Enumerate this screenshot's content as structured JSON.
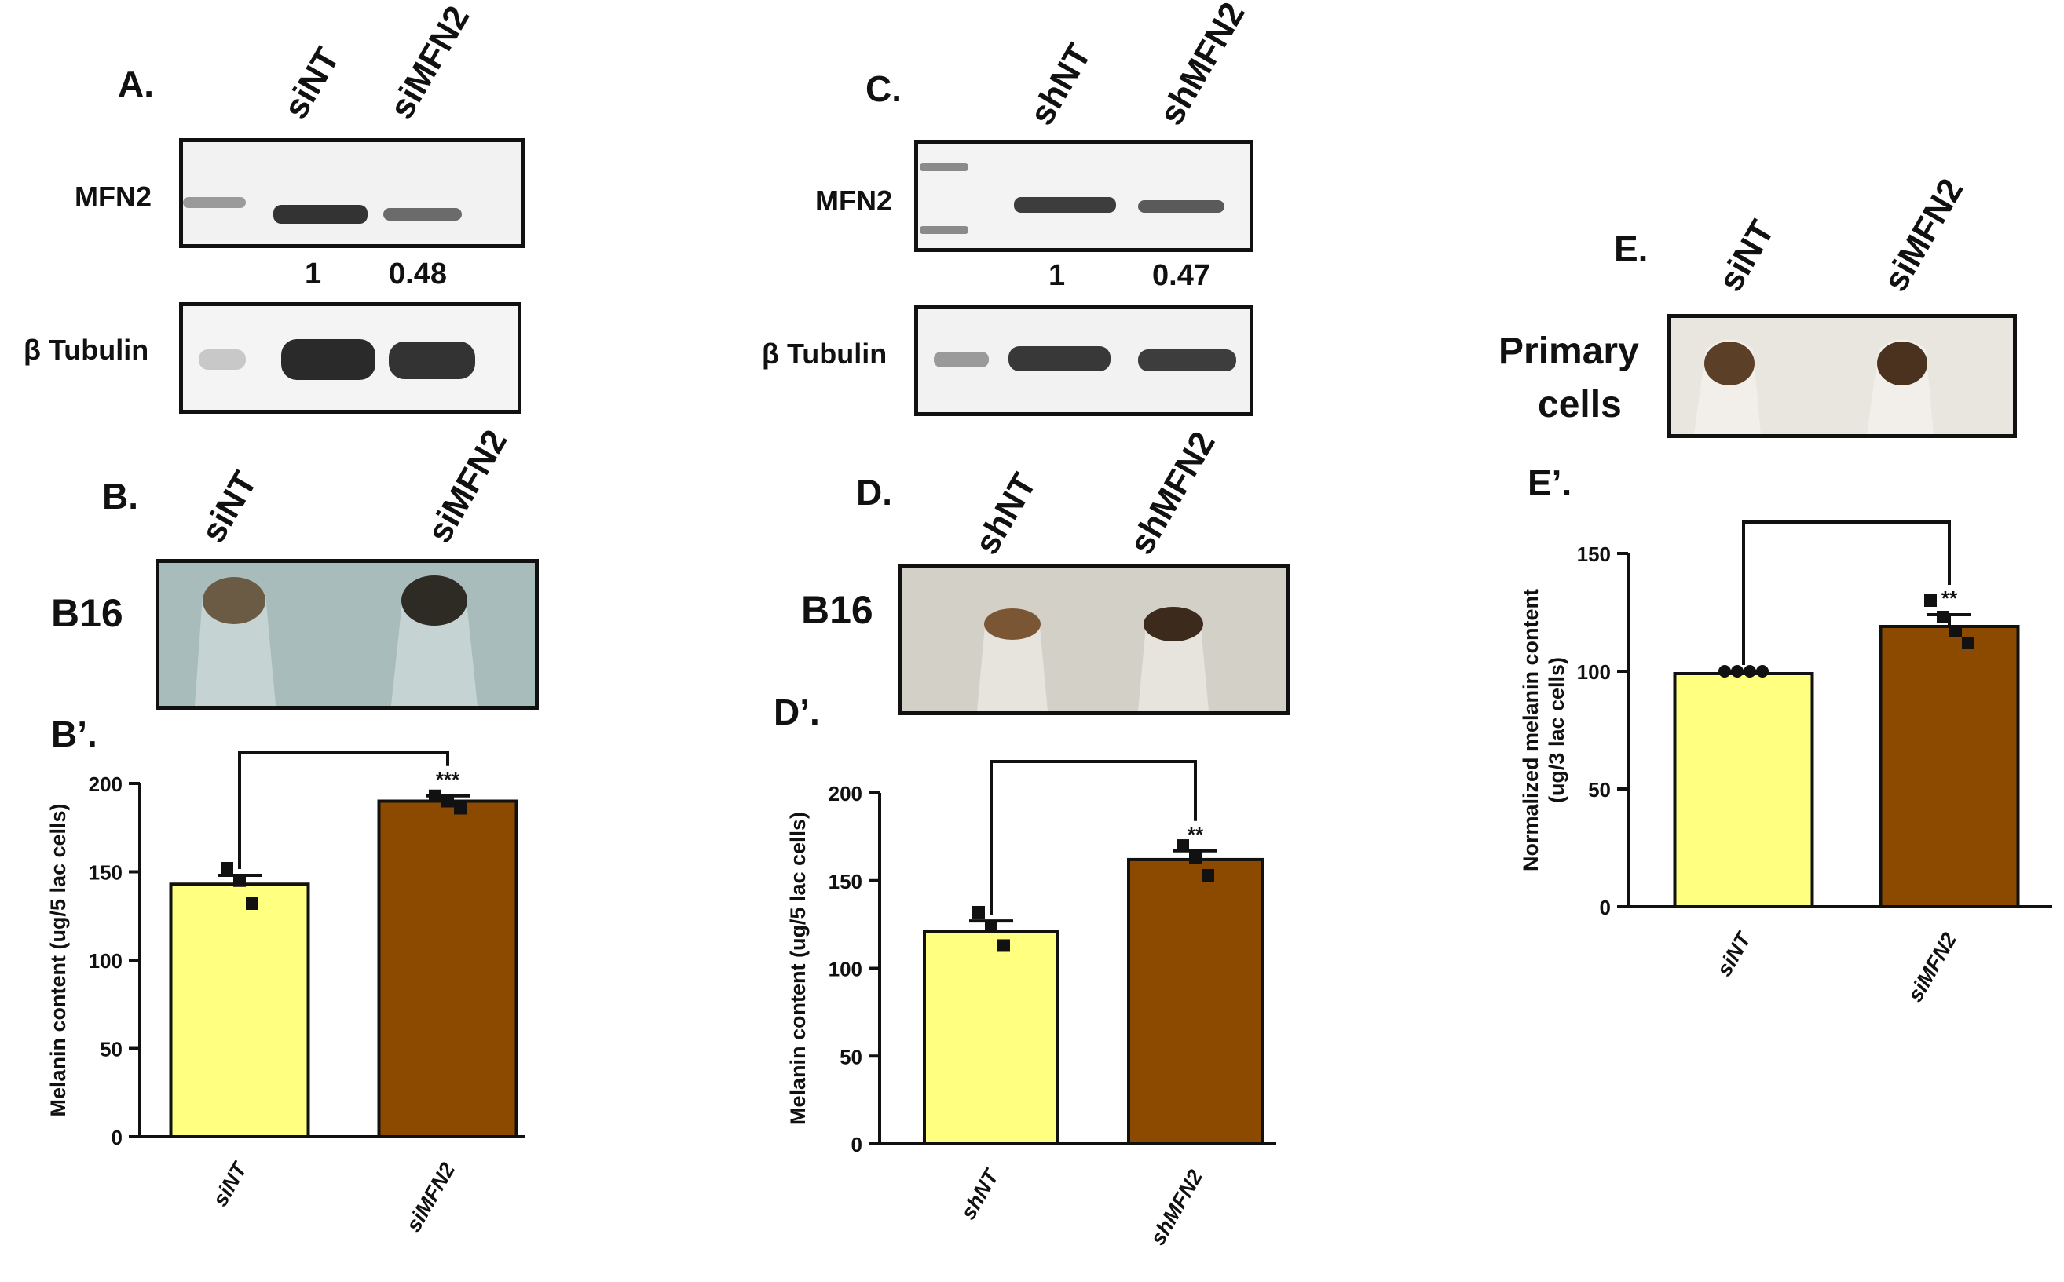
{
  "panels": {
    "A": {
      "letter": "A.",
      "lanes": [
        "siNT",
        "siMFN2"
      ],
      "rows": [
        "MFN2",
        "β Tubulin"
      ],
      "quant": [
        "1",
        "0.48"
      ]
    },
    "B": {
      "letter": "B.",
      "lanes": [
        "siNT",
        "siMFN2"
      ],
      "cell_line": "B16",
      "chart_letter": "B’."
    },
    "C": {
      "letter": "C.",
      "lanes": [
        "shNT",
        "shMFN2"
      ],
      "rows": [
        "MFN2",
        "β Tubulin"
      ],
      "quant": [
        "1",
        "0.47"
      ]
    },
    "D": {
      "letter": "D.",
      "lanes": [
        "shNT",
        "shMFN2"
      ],
      "cell_line": "B16",
      "chart_letter": "D’."
    },
    "E": {
      "letter": "E.",
      "lanes": [
        "siNT",
        "siMFN2"
      ],
      "cell_line": [
        "Primary",
        "cells"
      ],
      "chart_letter": "E’."
    }
  },
  "chart_data": [
    {
      "id": "B-prime",
      "type": "bar",
      "categories": [
        "siNT",
        "siMFN2"
      ],
      "values": [
        143,
        190
      ],
      "errors": [
        5,
        3
      ],
      "points": [
        [
          152,
          145,
          132
        ],
        [
          193,
          190,
          186
        ]
      ],
      "colors": [
        "#ffff80",
        "#8b4a00"
      ],
      "ylabel": "Melanin content (ug/5 lac cells)",
      "yticks": [
        0,
        50,
        100,
        150,
        200
      ],
      "ylim": [
        0,
        200
      ],
      "significance": "***"
    },
    {
      "id": "D-prime",
      "type": "bar",
      "categories": [
        "shNT",
        "shMFN2"
      ],
      "values": [
        121,
        162
      ],
      "errors": [
        6,
        5
      ],
      "points": [
        [
          132,
          124,
          113
        ],
        [
          170,
          163,
          153
        ]
      ],
      "colors": [
        "#ffff80",
        "#8b4a00"
      ],
      "ylabel": "Melanin content (ug/5 lac cells)",
      "yticks": [
        0,
        50,
        100,
        150,
        200
      ],
      "ylim": [
        0,
        200
      ],
      "significance": "**"
    },
    {
      "id": "E-prime",
      "type": "bar",
      "categories": [
        "siNT",
        "siMFN2"
      ],
      "values": [
        99,
        119
      ],
      "errors": [
        1,
        5
      ],
      "points": [
        [
          100,
          100,
          100,
          100
        ],
        [
          130,
          123,
          117,
          112
        ]
      ],
      "colors": [
        "#ffff80",
        "#8b4a00"
      ],
      "ylabel": "Normalized melanin content (ug/3 lac cells)",
      "ylabel_lines": [
        "Normalized melanin content",
        "(ug/3 lac cells)"
      ],
      "yticks": [
        0,
        50,
        100,
        150
      ],
      "ylim": [
        0,
        150
      ],
      "significance": "**"
    }
  ]
}
